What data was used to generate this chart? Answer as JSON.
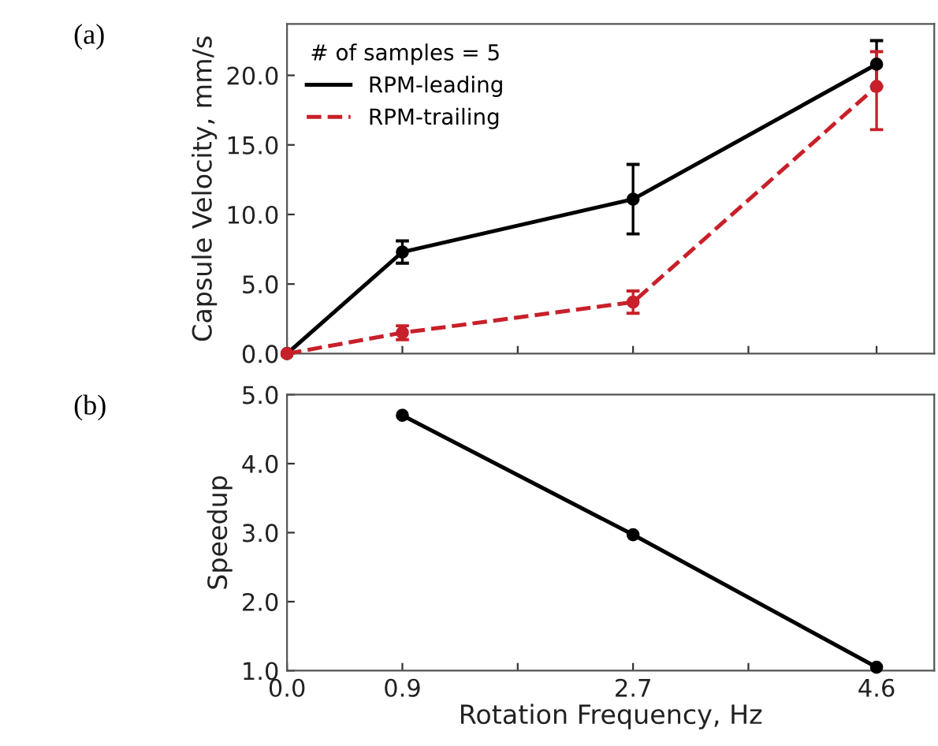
{
  "chart_data": [
    {
      "type": "line",
      "annotations": [
        "(a)"
      ],
      "ylabel": "Capsule Velocity, mm/s",
      "legend_title": "# of samples = 5",
      "legend": "top left",
      "marker": "circle",
      "tick_labels": "y",
      "x": [
        0,
        0.9,
        2.7,
        4.6
      ],
      "xlim": [
        0,
        5.05
      ],
      "xticks": [
        {
          "value": 0,
          "label": null
        },
        {
          "value": 0.9,
          "label": null
        },
        {
          "value": 1.8,
          "label": null
        },
        {
          "value": 2.7,
          "label": null
        },
        {
          "value": 3.6,
          "label": null
        },
        {
          "value": 4.6,
          "label": null
        }
      ],
      "ylim": [
        0,
        23.7
      ],
      "yticks": [
        {
          "value": 0,
          "label": "0.0"
        },
        {
          "value": 5,
          "label": "5.0"
        },
        {
          "value": 10,
          "label": "10.0"
        },
        {
          "value": 15,
          "label": "15.0"
        },
        {
          "value": 20,
          "label": "20.0"
        }
      ],
      "series": [
        {
          "name": "RPM-leading",
          "color": "#000000",
          "line_style": "solid",
          "values": [
            0,
            7.3,
            11.1,
            20.8
          ],
          "errors": [
            null,
            0.8,
            2.5,
            [
              19.2,
              22.5
            ]
          ]
        },
        {
          "name": "RPM-trailing",
          "color": "#c8202a",
          "line_style": "dashed",
          "values": [
            0,
            1.5,
            3.7,
            19.2
          ],
          "errors": [
            null,
            0.5,
            0.8,
            [
              16.1,
              21.7
            ]
          ]
        }
      ]
    },
    {
      "type": "line",
      "annotations": [
        "(b)"
      ],
      "xlabel": "Rotation Frequency, Hz",
      "ylabel": "Speedup",
      "marker": "circle",
      "legend": false,
      "x": [
        0.9,
        2.7,
        4.6
      ],
      "xlim": [
        0,
        5.05
      ],
      "xticks": [
        {
          "value": 0,
          "label": "0.0"
        },
        {
          "value": 0.9,
          "label": "0.9"
        },
        {
          "value": 1.8,
          "label": null
        },
        {
          "value": 2.7,
          "label": "2.7"
        },
        {
          "value": 3.6,
          "label": null
        },
        {
          "value": 4.6,
          "label": "4.6"
        }
      ],
      "ylim": [
        1,
        5
      ],
      "yticks": [
        {
          "value": 1,
          "label": "1.0"
        },
        {
          "value": 2,
          "label": "2.0"
        },
        {
          "value": 3,
          "label": "3.0"
        },
        {
          "value": 4,
          "label": "4.0"
        },
        {
          "value": 5,
          "label": "5.0"
        }
      ],
      "series": [
        {
          "color": "#000000",
          "line_style": "solid",
          "values": [
            4.7,
            2.97,
            1.05
          ]
        }
      ]
    }
  ]
}
